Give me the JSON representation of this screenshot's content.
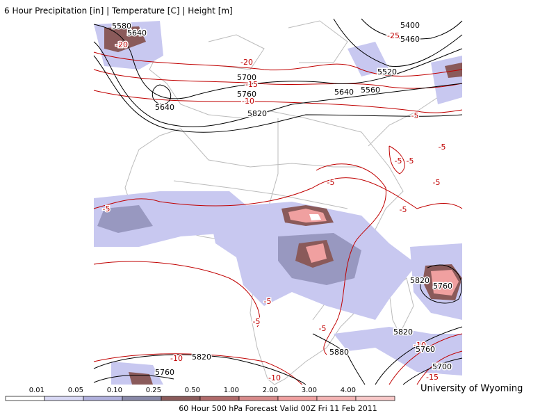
{
  "header": {
    "title": "6 Hour Precipitation [in] | Temperature [C] | Height [m]"
  },
  "map": {
    "contour_labels": [
      "5580",
      "5640",
      "-20",
      "-20",
      "5700",
      "-15",
      "5760",
      "-10",
      "5820",
      "5640",
      "5400",
      "-25",
      "5460",
      "5520",
      "5640",
      "5560",
      "-5",
      "-5",
      "-5",
      "-5",
      "-5",
      "-5",
      "-5",
      "-5",
      "-5",
      "-5",
      "-5",
      "5820",
      "5760",
      "5820",
      "-10",
      "5760",
      "5880",
      "5820",
      "-10",
      "5760",
      "-10",
      "5700",
      "-15"
    ]
  },
  "legend": {
    "thresholds": [
      "0.01",
      "0.05",
      "0.10",
      "0.25",
      "0.50",
      "1.00",
      "2.00",
      "3.00",
      "4.00"
    ]
  },
  "footer": {
    "caption": "60 Hour 500 hPa Forecast Valid 00Z Fri 11 Feb 2011",
    "credit": "University of Wyoming"
  }
}
